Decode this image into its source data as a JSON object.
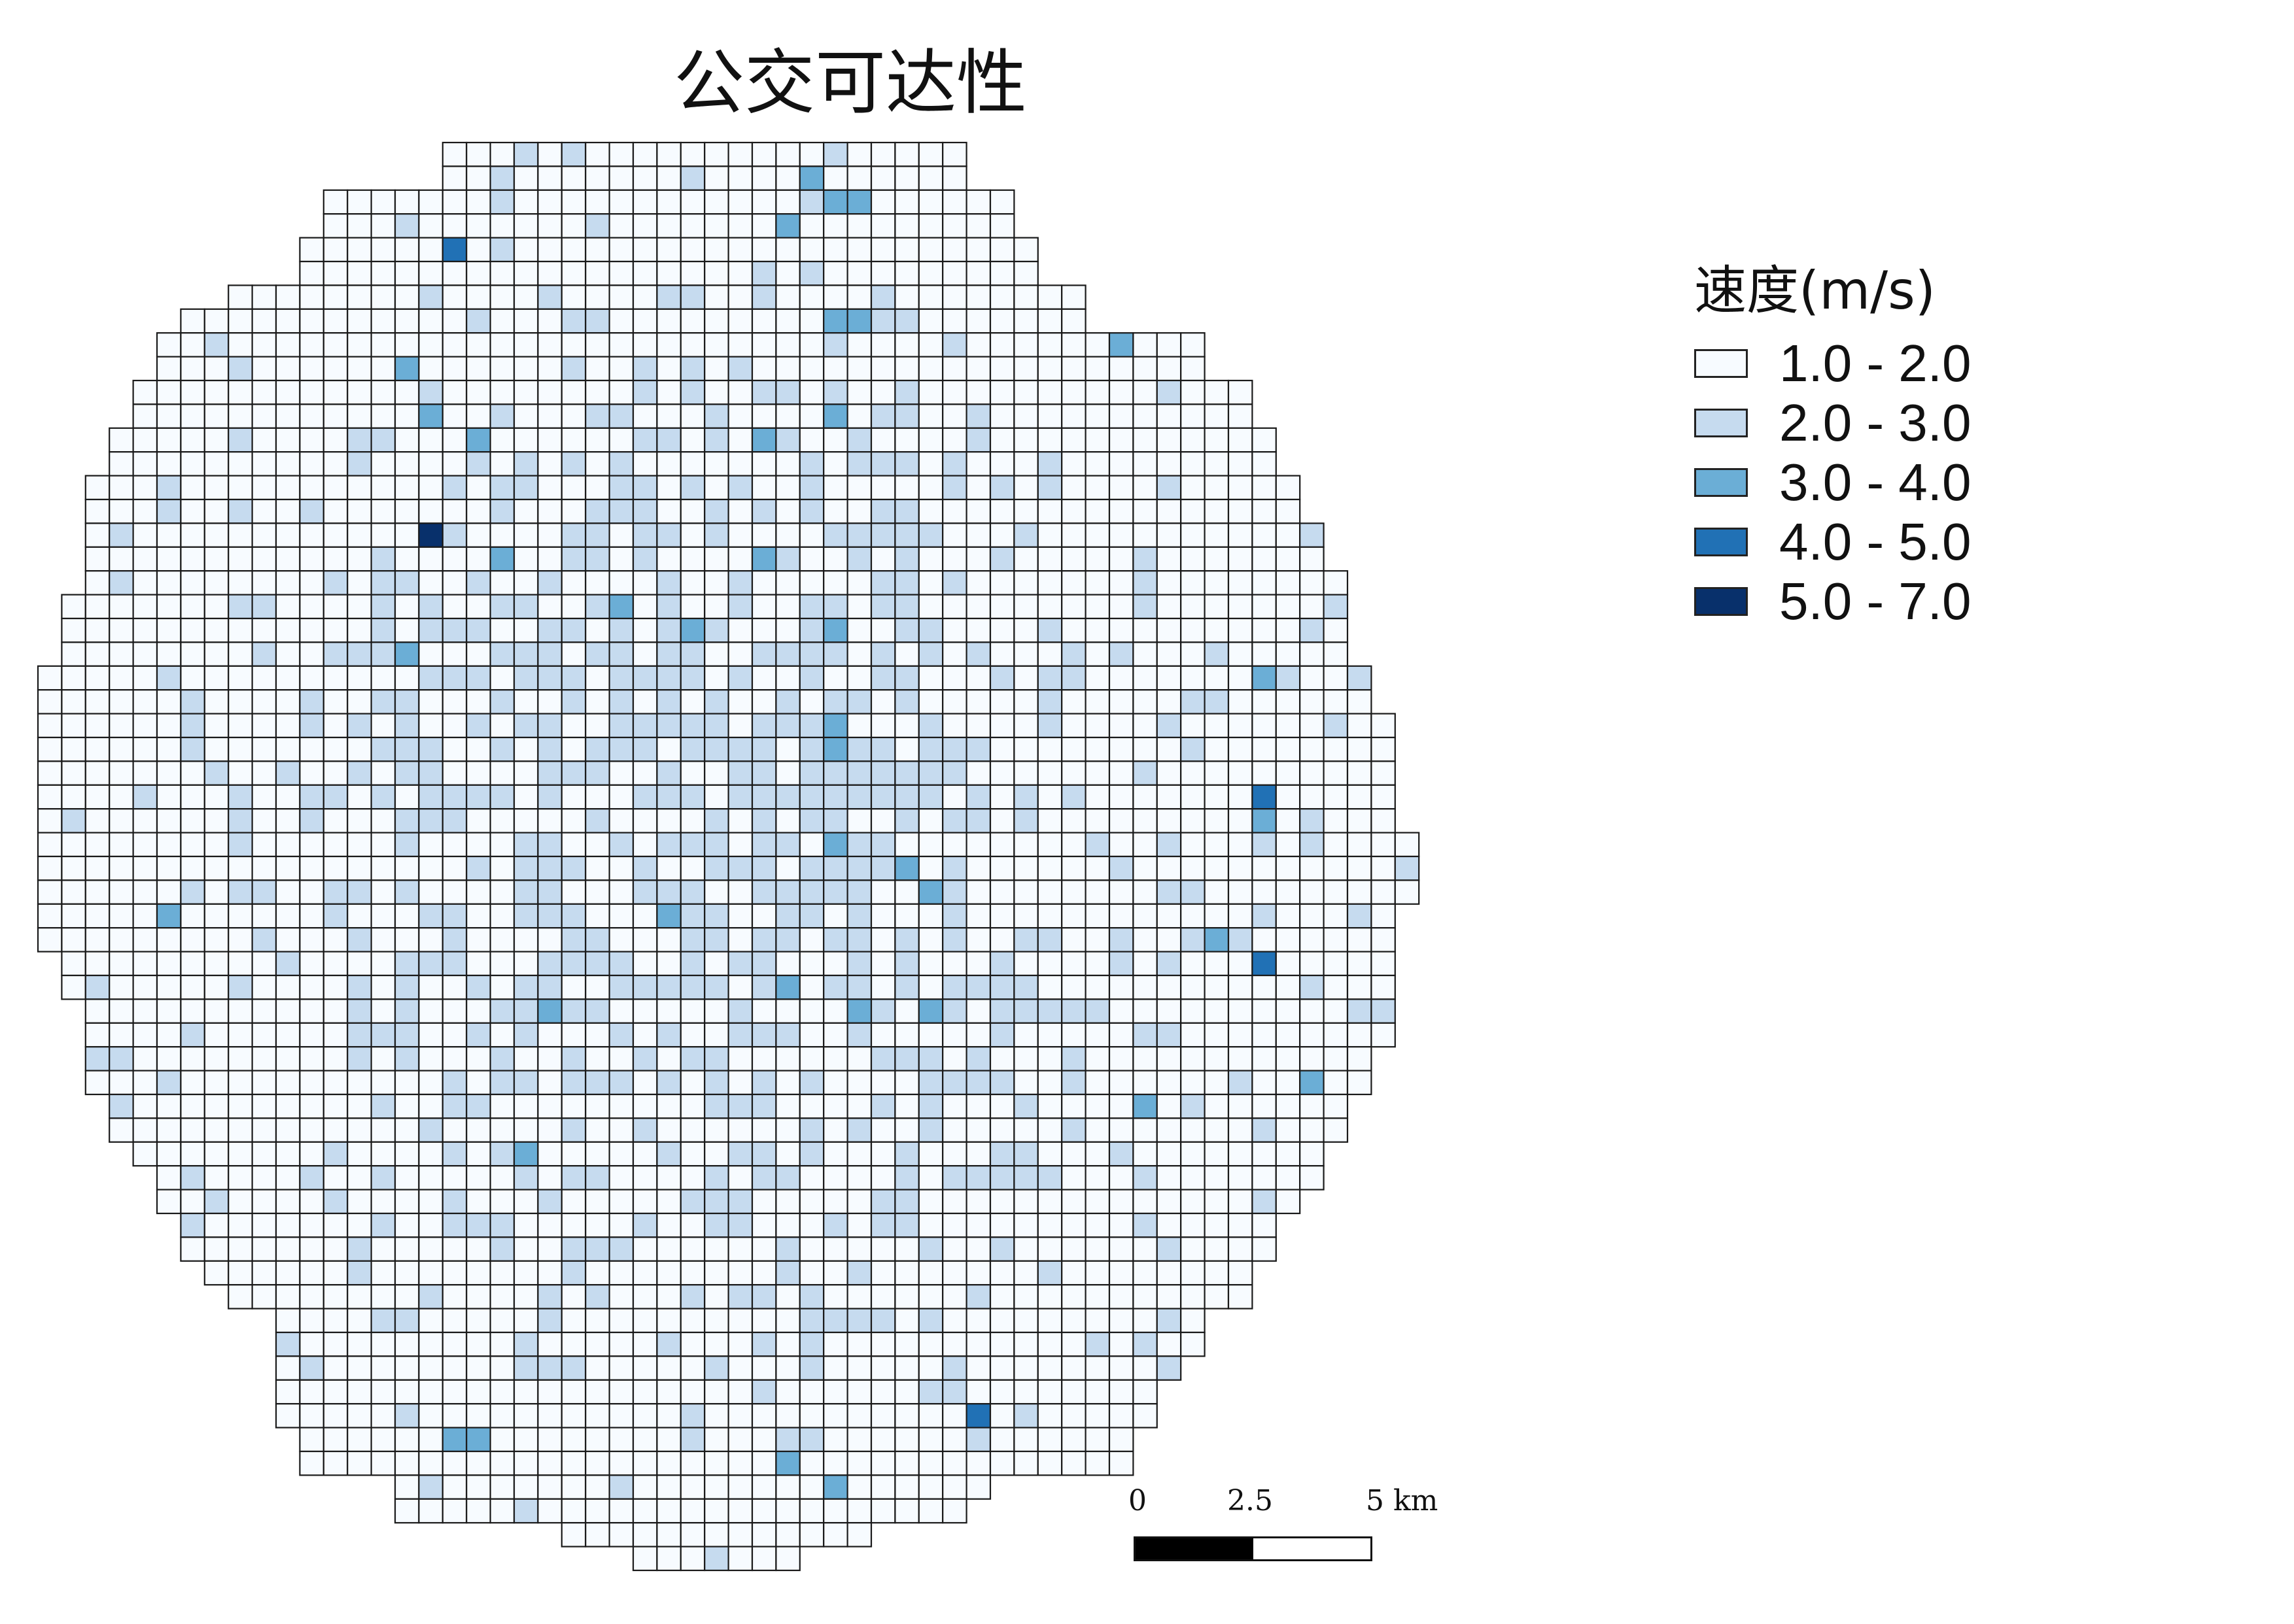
{
  "title": "公交可达性",
  "legend": {
    "title": "速度(m/s)",
    "classes": [
      {
        "label": "1.0 - 2.0",
        "color": "#f7fbff"
      },
      {
        "label": "2.0 - 3.0",
        "color": "#c6dbef"
      },
      {
        "label": "3.0 - 4.0",
        "color": "#6baed6"
      },
      {
        "label": "4.0 - 5.0",
        "color": "#2171b5"
      },
      {
        "label": "5.0 - 7.0",
        "color": "#08306b"
      }
    ]
  },
  "scalebar": {
    "labels": [
      "0",
      "2.5",
      "5 km"
    ]
  },
  "colors": {
    "cell_border": "#1a1a1a",
    "background": "#ffffff"
  }
}
